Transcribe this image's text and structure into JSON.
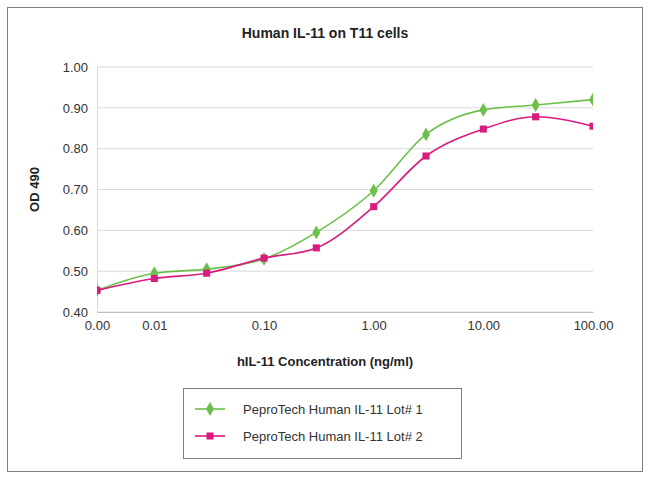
{
  "chart_data": {
    "type": "line",
    "title": "Human IL-11 on T11 cells",
    "x_label": "hIL-11 Concentration (ng/ml)",
    "y_label": "OD 490",
    "log": "x",
    "grid": true,
    "legend": "bottom",
    "x": [
      0.003,
      0.01,
      0.03,
      0.1,
      0.3,
      1,
      3,
      10,
      30,
      100
    ],
    "xlim": [
      0.003,
      100
    ],
    "xticks": [
      {
        "value": 0.003,
        "label": "0.00"
      },
      0.01,
      {
        "value": 0.1,
        "label": "0.10"
      },
      {
        "value": 1,
        "label": "1.00"
      },
      {
        "value": 10,
        "label": "10.00"
      },
      {
        "value": 100,
        "label": "100.00"
      }
    ],
    "ylim": [
      0.4,
      1.0
    ],
    "yticks": [
      {
        "value": 0.4,
        "label": "0.40"
      },
      {
        "value": 0.5,
        "label": "0.50"
      },
      {
        "value": 0.6,
        "label": "0.60"
      },
      {
        "value": 0.7,
        "label": "0.70"
      },
      {
        "value": 0.8,
        "label": "0.80"
      },
      {
        "value": 0.9,
        "label": "0.90"
      },
      {
        "value": 1.0,
        "label": "1.00"
      }
    ],
    "series": [
      {
        "name": "PeproTech Human IL-11 Lot# 1",
        "color": "#6cc04a",
        "marker": "diamond",
        "values": [
          0.453,
          0.495,
          0.505,
          0.53,
          0.595,
          0.697,
          0.835,
          0.895,
          0.907,
          0.92
        ]
      },
      {
        "name": "PeproTech Human IL-11 Lot# 2",
        "color": "#d81b7e",
        "marker": "square",
        "values": [
          0.453,
          0.482,
          0.495,
          0.532,
          0.557,
          0.658,
          0.782,
          0.848,
          0.878,
          0.855
        ]
      }
    ]
  }
}
